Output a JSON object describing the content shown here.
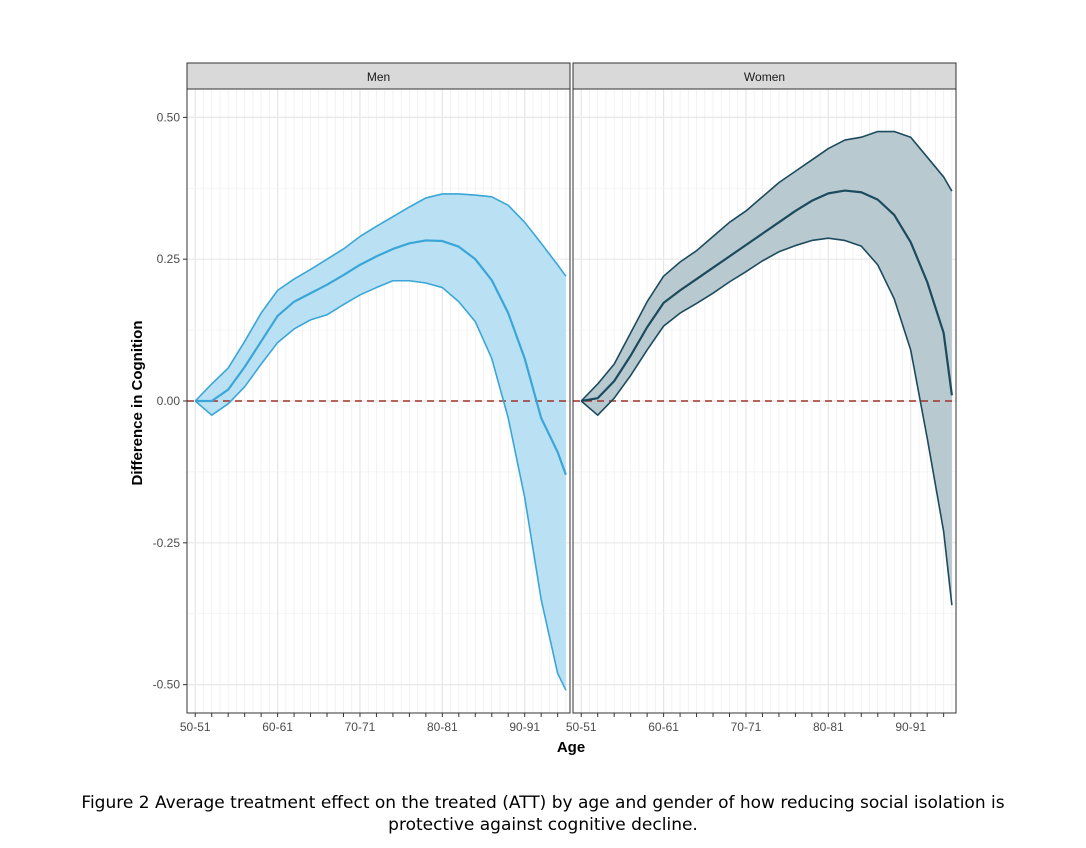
{
  "caption": {
    "line1": "Figure 2 Average treatment effect on the treated (ATT) by age and gender of how reducing social isolation is",
    "line2": "protective against cognitive decline."
  },
  "chart_data": {
    "type": "area",
    "xlabel": "Age",
    "ylabel": "Difference in Cognition",
    "ylim": [
      -0.55,
      0.55
    ],
    "yticks": [
      0.5,
      0.25,
      0.0,
      -0.25,
      -0.5
    ],
    "ytick_labels": [
      "0.50",
      "0.25",
      "0.00",
      "-0.25",
      "-0.50"
    ],
    "xlim": [
      49,
      95.5
    ],
    "xticks_major": [
      50,
      60,
      70,
      80,
      90
    ],
    "xtick_labels": [
      "50-51",
      "60-61",
      "70-71",
      "80-81",
      "90-91"
    ],
    "reference_line": {
      "y": 0,
      "style": "dashed",
      "color": "#a0322a"
    },
    "grid": true,
    "panels": [
      {
        "label": "Men",
        "line_color": "#3aa6d8",
        "fill_color": "#b6def2",
        "x": [
          50,
          52,
          54,
          56,
          58,
          60,
          62,
          64,
          66,
          68,
          70,
          72,
          74,
          76,
          78,
          80,
          82,
          84,
          86,
          88,
          90,
          92,
          94,
          95
        ],
        "estimate": [
          0.0,
          0.0,
          0.02,
          0.06,
          0.105,
          0.15,
          0.175,
          0.19,
          0.205,
          0.222,
          0.24,
          0.255,
          0.268,
          0.278,
          0.283,
          0.282,
          0.272,
          0.25,
          0.213,
          0.155,
          0.075,
          -0.03,
          -0.09,
          -0.13
        ],
        "upper": [
          0.0,
          0.03,
          0.058,
          0.105,
          0.155,
          0.195,
          0.215,
          0.232,
          0.25,
          0.268,
          0.29,
          0.308,
          0.325,
          0.342,
          0.358,
          0.365,
          0.365,
          0.363,
          0.36,
          0.345,
          0.315,
          0.278,
          0.24,
          0.22
        ],
        "lower": [
          0.0,
          -0.025,
          -0.005,
          0.025,
          0.065,
          0.103,
          0.127,
          0.143,
          0.152,
          0.17,
          0.187,
          0.2,
          0.212,
          0.212,
          0.208,
          0.2,
          0.175,
          0.14,
          0.075,
          -0.03,
          -0.17,
          -0.35,
          -0.48,
          -0.51
        ]
      },
      {
        "label": "Women",
        "line_color": "#1c4a5e",
        "fill_color": "#b4c7ce",
        "x": [
          50,
          52,
          54,
          56,
          58,
          60,
          62,
          64,
          66,
          68,
          70,
          72,
          74,
          76,
          78,
          80,
          82,
          84,
          86,
          88,
          90,
          92,
          94,
          95
        ],
        "estimate": [
          0.0,
          0.005,
          0.035,
          0.08,
          0.13,
          0.173,
          0.195,
          0.215,
          0.235,
          0.255,
          0.275,
          0.295,
          0.315,
          0.335,
          0.353,
          0.366,
          0.371,
          0.368,
          0.355,
          0.328,
          0.28,
          0.21,
          0.12,
          0.01
        ],
        "upper": [
          0.0,
          0.03,
          0.065,
          0.12,
          0.175,
          0.22,
          0.245,
          0.265,
          0.29,
          0.315,
          0.335,
          0.36,
          0.385,
          0.405,
          0.425,
          0.445,
          0.46,
          0.465,
          0.475,
          0.475,
          0.465,
          0.43,
          0.395,
          0.37
        ],
        "lower": [
          0.0,
          -0.025,
          0.005,
          0.045,
          0.09,
          0.132,
          0.155,
          0.172,
          0.19,
          0.21,
          0.228,
          0.247,
          0.263,
          0.274,
          0.283,
          0.287,
          0.283,
          0.273,
          0.24,
          0.18,
          0.09,
          -0.065,
          -0.23,
          -0.36
        ]
      }
    ]
  }
}
